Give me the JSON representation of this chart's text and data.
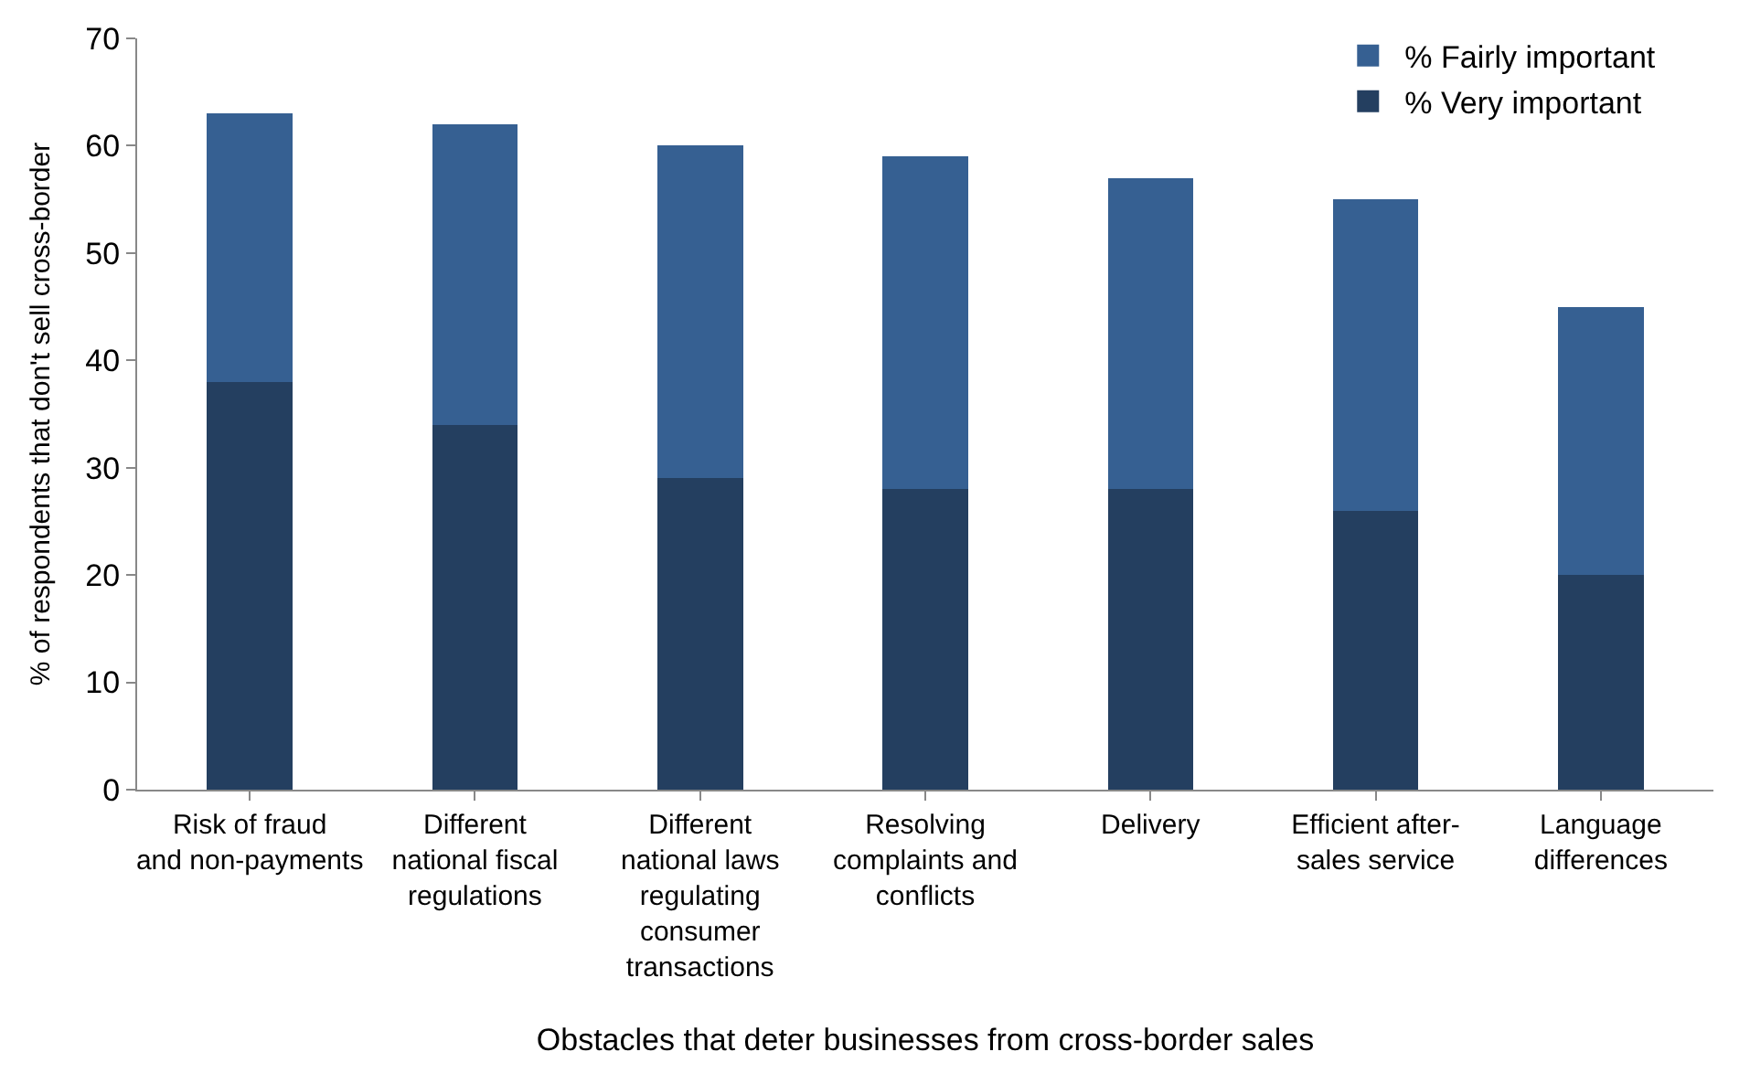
{
  "chart_data": {
    "type": "bar",
    "stacked": true,
    "xlabel": "Obstacles that deter businesses from cross-border sales",
    "ylabel": "% of respondents that don't sell cross-border",
    "categories": [
      "Risk of fraud and non-payments",
      "Different national fiscal regulations",
      "Different national laws regulating consumer transactions",
      "Resolving complaints and conflicts",
      "Delivery",
      "Efficient after-sales service",
      "Language differences"
    ],
    "series": [
      {
        "name": "% Very important",
        "color": "#243f60",
        "values": [
          38,
          34,
          29,
          28,
          28,
          26,
          20
        ]
      },
      {
        "name": "% Fairly important",
        "color": "#366092",
        "values": [
          25,
          28,
          31,
          31,
          29,
          29,
          25
        ]
      }
    ],
    "ylim": [
      0,
      70
    ],
    "yticks": [
      0,
      10,
      20,
      30,
      40,
      50,
      60,
      70
    ],
    "legend": "top right"
  }
}
